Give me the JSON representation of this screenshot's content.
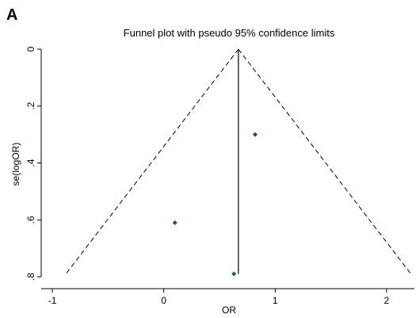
{
  "panel_label": "A",
  "chart_data": {
    "type": "scatter",
    "title": "Funnel plot with pseudo 95% confidence limits",
    "xlabel": "OR",
    "ylabel": "se(logOR)",
    "xlim": [
      -1.1,
      2.25
    ],
    "ylim": [
      0,
      0.8
    ],
    "y_inverted": true,
    "grid": false,
    "x_ticks": [
      -1,
      0,
      1,
      2
    ],
    "x_tick_labels": [
      "-1",
      "0",
      "1",
      "2"
    ],
    "y_ticks": [
      0,
      0.2,
      0.4,
      0.6,
      0.8
    ],
    "y_tick_labels": [
      "0",
      ".2",
      ".4",
      ".6",
      ".8"
    ],
    "pooled_estimate": 0.67,
    "funnel_max_se": 0.79,
    "points": [
      {
        "x": 0.82,
        "y": 0.3
      },
      {
        "x": 0.1,
        "y": 0.61
      },
      {
        "x": 0.63,
        "y": 0.79
      }
    ],
    "colors": {
      "marker": "#1f4e79",
      "lines": "#000000"
    }
  }
}
